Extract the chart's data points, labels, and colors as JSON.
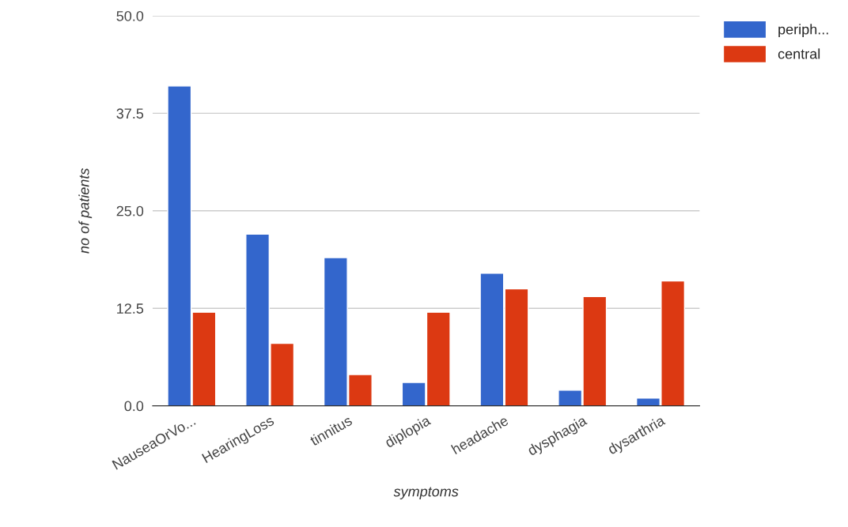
{
  "chart_data": {
    "type": "bar",
    "xlabel": "symptoms",
    "ylabel": "no of patients",
    "categories": [
      "NauseaOrVo...",
      "HearingLoss",
      "tinnitus",
      "diplopia",
      "headache",
      "dysphagia",
      "dysarthria"
    ],
    "series": [
      {
        "name": "periph...",
        "color": "#3366cc",
        "values": [
          41,
          22,
          19,
          3,
          17,
          2,
          1
        ]
      },
      {
        "name": "central",
        "color": "#dc3912",
        "values": [
          12,
          8,
          4,
          12,
          15,
          14,
          16
        ]
      }
    ],
    "ylim": [
      0,
      50
    ],
    "yticks": [
      {
        "value": 0,
        "label": "0.0"
      },
      {
        "value": 12.5,
        "label": "12.5"
      },
      {
        "value": 25,
        "label": "25.0"
      },
      {
        "value": 37.5,
        "label": "37.5"
      },
      {
        "value": 50,
        "label": "50.0"
      }
    ],
    "grid": "y",
    "legend": "top right"
  }
}
